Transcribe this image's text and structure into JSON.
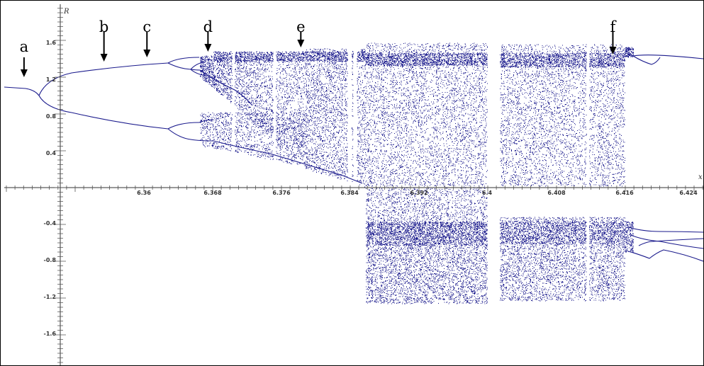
{
  "chart_data": {
    "type": "scatter",
    "title": "",
    "xlabel": "x",
    "ylabel": "R",
    "xlim": [
      6.349,
      6.424
    ],
    "ylim": [
      -1.95,
      1.95
    ],
    "grid": false,
    "x_tick_labels": [
      "6.36",
      "6.368",
      "6.376",
      "6.384",
      "6.392",
      "6.4",
      "6.408",
      "6.416",
      "6.424"
    ],
    "y_tick_labels": [
      "1.6",
      "1.2",
      "0.8",
      "0.4",
      "-0.4",
      "-0.8",
      "-1.2",
      "-1.6"
    ],
    "series": [
      {
        "color": "#1a1a8c",
        "description_points": [
          {
            "x": 6.349,
            "y": 1.12
          },
          {
            "x": 6.3522,
            "y": 1.09
          },
          {
            "x": 6.362,
            "y": 1.35
          },
          {
            "x": 6.362,
            "y": 0.72
          },
          {
            "x": 6.3665,
            "y": 1.42
          },
          {
            "x": 6.3665,
            "y": 1.26
          },
          {
            "x": 6.3665,
            "y": 0.65
          },
          {
            "x": 6.3665,
            "y": 0.52
          },
          {
            "x": 6.4205,
            "y": 1.43
          },
          {
            "x": 6.4205,
            "y": -0.57
          },
          {
            "x": 6.4205,
            "y": -0.72
          }
        ]
      }
    ],
    "annotations": [
      {
        "label": "a",
        "x": 6.3513
      },
      {
        "label": "b",
        "x": 6.3606
      },
      {
        "label": "c",
        "x": 6.3656
      },
      {
        "label": "d",
        "x": 6.3727
      },
      {
        "label": "e",
        "x": 6.3835
      },
      {
        "label": "f",
        "x": 6.4198
      }
    ]
  }
}
